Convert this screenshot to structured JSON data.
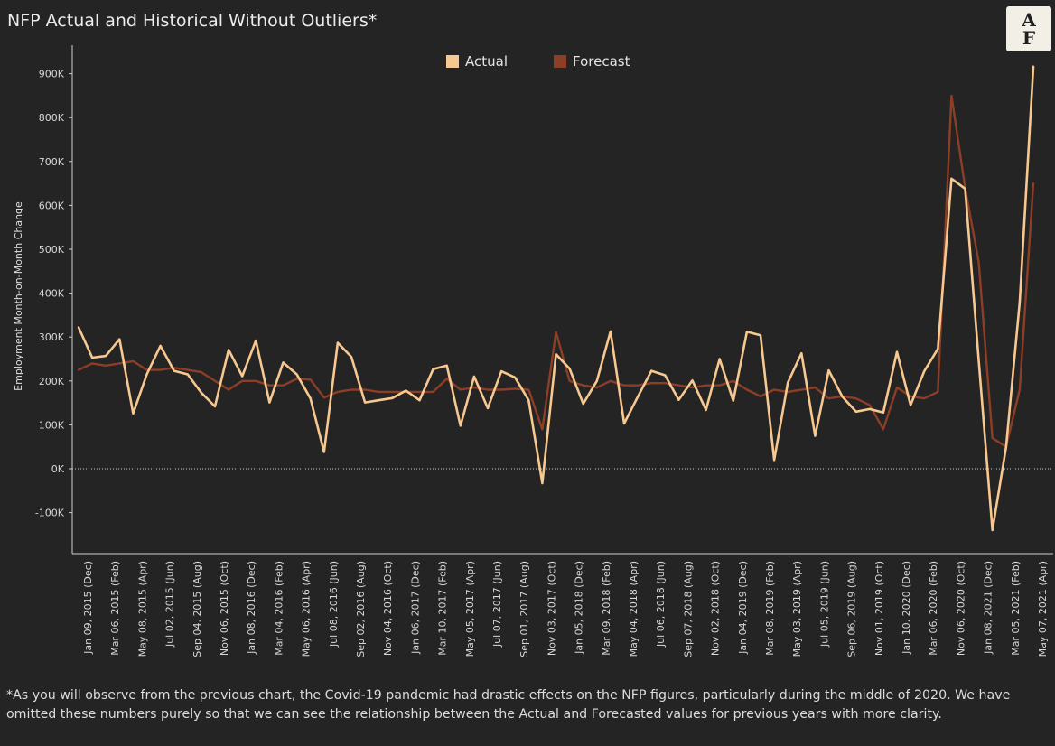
{
  "title": "NFP Actual and Historical Without Outliers*",
  "logo": {
    "line1": "A",
    "line2": "F"
  },
  "footnote": "*As you will observe from the previous chart, the Covid-19 pandemic had drastic effects on the NFP figures, particularly during the middle of 2020. We have omitted these numbers purely so that we can see the relationship between the Actual and Forecasted values for previous years with more clarity.",
  "colors": {
    "actual": "#f7c890",
    "forecast": "#8c3e26",
    "background": "#242424"
  },
  "chart_data": {
    "type": "line",
    "ylabel": "Employment Month-on-Month Change",
    "xlabel": "",
    "ylim": [
      -200,
      950
    ],
    "yticks": [
      -100,
      0,
      100,
      200,
      300,
      400,
      500,
      600,
      700,
      800,
      900
    ],
    "ytick_labels": [
      "-100K",
      "0K",
      "100K",
      "200K",
      "300K",
      "400K",
      "500K",
      "600K",
      "700K",
      "800K",
      "900K"
    ],
    "zero_line": "dotted",
    "legend_position": "top-center",
    "xtick_labels": [
      "Jan 09, 2015 (Dec)",
      "Mar 06, 2015 (Feb)",
      "May 08, 2015 (Apr)",
      "Jul 02, 2015 (Jun)",
      "Sep 04, 2015 (Aug)",
      "Nov 06, 2015 (Oct)",
      "Jan 08, 2016 (Dec)",
      "Mar 04, 2016 (Feb)",
      "May 06, 2016 (Apr)",
      "Jul 08, 2016 (Jun)",
      "Sep 02, 2016 (Aug)",
      "Nov 04, 2016 (Oct)",
      "Jan 06, 2017 (Dec)",
      "Mar 10, 2017 (Feb)",
      "May 05, 2017 (Apr)",
      "Jul 07, 2017 (Jun)",
      "Sep 01, 2017 (Aug)",
      "Nov 03, 2017 (Oct)",
      "Jan 05, 2018 (Dec)",
      "Mar 09, 2018 (Feb)",
      "May 04, 2018 (Apr)",
      "Jul 06, 2018 (Jun)",
      "Sep 07, 2018 (Aug)",
      "Nov 02, 2018 (Oct)",
      "Jan 04, 2019 (Dec)",
      "Mar 08, 2019 (Feb)",
      "May 03, 2019 (Apr)",
      "Jul 05, 2019 (Jun)",
      "Sep 06, 2019 (Aug)",
      "Nov 01, 2019 (Oct)",
      "Jan 10, 2020 (Dec)",
      "Mar 06, 2020 (Feb)",
      "Nov 06, 2020 (Oct)",
      "Jan 08, 2021 (Dec)",
      "Mar 05, 2021 (Feb)",
      "May 07, 2021 (Apr)"
    ],
    "xtick_indices": [
      0,
      2,
      4,
      6,
      8,
      10,
      12,
      14,
      16,
      18,
      20,
      22,
      24,
      26,
      28,
      30,
      32,
      34,
      36,
      38,
      40,
      42,
      44,
      46,
      48,
      50,
      52,
      54,
      56,
      58,
      60,
      62,
      64,
      66,
      68,
      70
    ],
    "series": [
      {
        "name": "Actual",
        "values": [
          322,
          253,
          257,
          295,
          126,
          215,
          280,
          223,
          215,
          173,
          142,
          271,
          211,
          292,
          151,
          242,
          215,
          160,
          38,
          287,
          255,
          151,
          156,
          161,
          178,
          156,
          227,
          235,
          98,
          210,
          138,
          222,
          208,
          156,
          -33,
          261,
          228,
          148,
          200,
          313,
          103,
          164,
          223,
          213,
          157,
          201,
          134,
          250,
          155,
          312,
          304,
          20,
          196,
          263,
          75,
          224,
          164,
          130,
          136,
          128,
          266,
          145,
          222,
          273,
          661,
          638,
          245,
          -140,
          49,
          379,
          916
        ]
      },
      {
        "name": "Forecast",
        "values": [
          225,
          240,
          235,
          240,
          245,
          225,
          225,
          230,
          225,
          220,
          200,
          180,
          200,
          200,
          190,
          190,
          205,
          203,
          162,
          175,
          180,
          180,
          175,
          175,
          175,
          175,
          175,
          205,
          180,
          185,
          180,
          180,
          182,
          180,
          90,
          312,
          200,
          190,
          185,
          200,
          190,
          190,
          195,
          195,
          190,
          185,
          190,
          190,
          200,
          180,
          165,
          180,
          175,
          180,
          185,
          160,
          165,
          160,
          145,
          90,
          185,
          165,
          160,
          175,
          850,
          640,
          470,
          70,
          50,
          180,
          650
        ]
      }
    ]
  }
}
